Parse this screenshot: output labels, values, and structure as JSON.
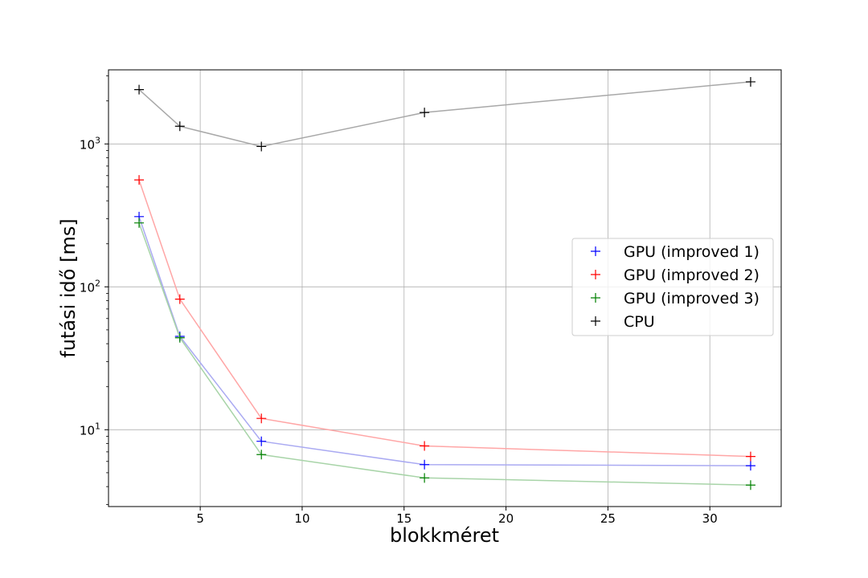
{
  "chart_data": {
    "type": "line",
    "xlabel": "blokkméret",
    "ylabel": "futási idő [ms]",
    "x": [
      2,
      4,
      8,
      16,
      32
    ],
    "xlim": [
      0.5,
      33.5
    ],
    "ylim": [
      2.9,
      3300
    ],
    "yscale": "log",
    "grid": true,
    "legend_position": "center-right",
    "x_ticks": [
      {
        "value": 5,
        "label": "5"
      },
      {
        "value": 10,
        "label": "10"
      },
      {
        "value": 15,
        "label": "15"
      },
      {
        "value": 20,
        "label": "20"
      },
      {
        "value": 25,
        "label": "25"
      },
      {
        "value": 30,
        "label": "30"
      }
    ],
    "y_ticks": [
      {
        "value": 10,
        "base": "10",
        "exp": "1"
      },
      {
        "value": 100,
        "base": "10",
        "exp": "2"
      },
      {
        "value": 1000,
        "base": "10",
        "exp": "3"
      }
    ],
    "series": [
      {
        "name": "GPU (improved 1)",
        "marker_color": "#0000ff",
        "line_color": "#aaaaf2",
        "values": [
          310,
          45,
          8.3,
          5.7,
          5.6
        ]
      },
      {
        "name": "GPU (improved 2)",
        "marker_color": "#ff0000",
        "line_color": "#ffa6a6",
        "values": [
          560,
          82,
          12,
          7.7,
          6.5
        ]
      },
      {
        "name": "GPU (improved 3)",
        "marker_color": "#008000",
        "line_color": "#a8d4a8",
        "values": [
          280,
          44,
          6.7,
          4.6,
          4.1
        ]
      },
      {
        "name": "CPU",
        "marker_color": "#000000",
        "line_color": "#a8a8a8",
        "values": [
          2400,
          1330,
          960,
          1660,
          2720
        ]
      }
    ]
  }
}
